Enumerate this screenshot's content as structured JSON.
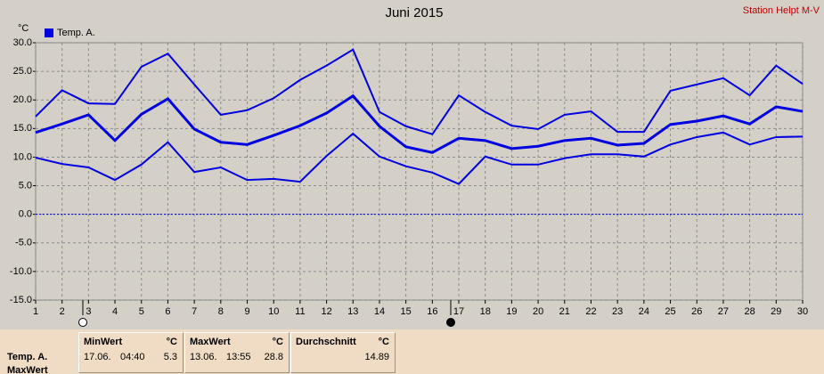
{
  "chart_data": {
    "type": "line",
    "title": "Juni 2015",
    "station": "Station Helpt M-V",
    "y_unit": "°C",
    "x": [
      1,
      2,
      3,
      4,
      5,
      6,
      7,
      8,
      9,
      10,
      11,
      12,
      13,
      14,
      15,
      16,
      17,
      18,
      19,
      20,
      21,
      22,
      23,
      24,
      25,
      26,
      27,
      28,
      29,
      30
    ],
    "xlim": [
      1,
      30
    ],
    "xticks": [
      1,
      2,
      3,
      4,
      5,
      6,
      7,
      8,
      9,
      10,
      11,
      12,
      13,
      14,
      15,
      16,
      17,
      18,
      19,
      20,
      21,
      22,
      23,
      24,
      25,
      26,
      27,
      28,
      29,
      30
    ],
    "ylim": [
      -15,
      30
    ],
    "yticks": [
      {
        "value": -15,
        "label": "-15.0"
      },
      {
        "value": -10,
        "label": "-10.0"
      },
      {
        "value": -5,
        "label": "-5.0"
      },
      {
        "value": 0,
        "label": "0.0"
      },
      {
        "value": 5,
        "label": "5.0"
      },
      {
        "value": 10,
        "label": "10.0"
      },
      {
        "value": 15,
        "label": "15.0"
      },
      {
        "value": 20,
        "label": "20.0"
      },
      {
        "value": 25,
        "label": "25.0"
      },
      {
        "value": 30,
        "label": "30.0"
      }
    ],
    "grid": true,
    "zero_line": true,
    "legend": "top-left",
    "series": [
      {
        "name": "Temp. A.",
        "color": "#0000e0",
        "values": [
          14.3,
          15.8,
          17.4,
          12.9,
          17.5,
          20.2,
          14.9,
          12.6,
          12.2,
          13.8,
          15.5,
          17.7,
          20.7,
          15.4,
          11.8,
          10.8,
          13.3,
          12.9,
          11.5,
          11.9,
          12.9,
          13.3,
          12.1,
          12.4,
          15.7,
          16.3,
          17.2,
          15.8,
          18.8,
          18.0
        ],
        "max": [
          17.1,
          21.7,
          19.4,
          19.3,
          25.8,
          28.1,
          22.7,
          17.4,
          18.2,
          20.3,
          23.5,
          26.0,
          28.8,
          17.9,
          15.4,
          14.0,
          20.8,
          17.9,
          15.5,
          14.9,
          17.4,
          18.0,
          14.4,
          14.4,
          21.6,
          22.7,
          23.8,
          20.8,
          26.0,
          22.8
        ],
        "min": [
          9.9,
          8.8,
          8.2,
          6.0,
          8.7,
          12.6,
          7.4,
          8.2,
          6.0,
          6.2,
          5.7,
          10.2,
          14.1,
          10.1,
          8.4,
          7.3,
          5.3,
          10.1,
          8.7,
          8.7,
          9.8,
          10.5,
          10.5,
          10.1,
          12.2,
          13.5,
          14.3,
          12.2,
          13.5,
          13.6
        ]
      }
    ],
    "summary": {
      "row_label": "Temp. A.",
      "next_row_label": "MaxWert",
      "panels": [
        {
          "header": "MinWert",
          "unit": "°C",
          "date": "17.06.",
          "time": "04:40",
          "value": 5.3
        },
        {
          "header": "MaxWert",
          "unit": "°C",
          "date": "13.06.",
          "time": "13:55",
          "value": 28.8
        },
        {
          "header": "Durchschnitt",
          "unit": "°C",
          "value": 14.89
        }
      ]
    }
  }
}
